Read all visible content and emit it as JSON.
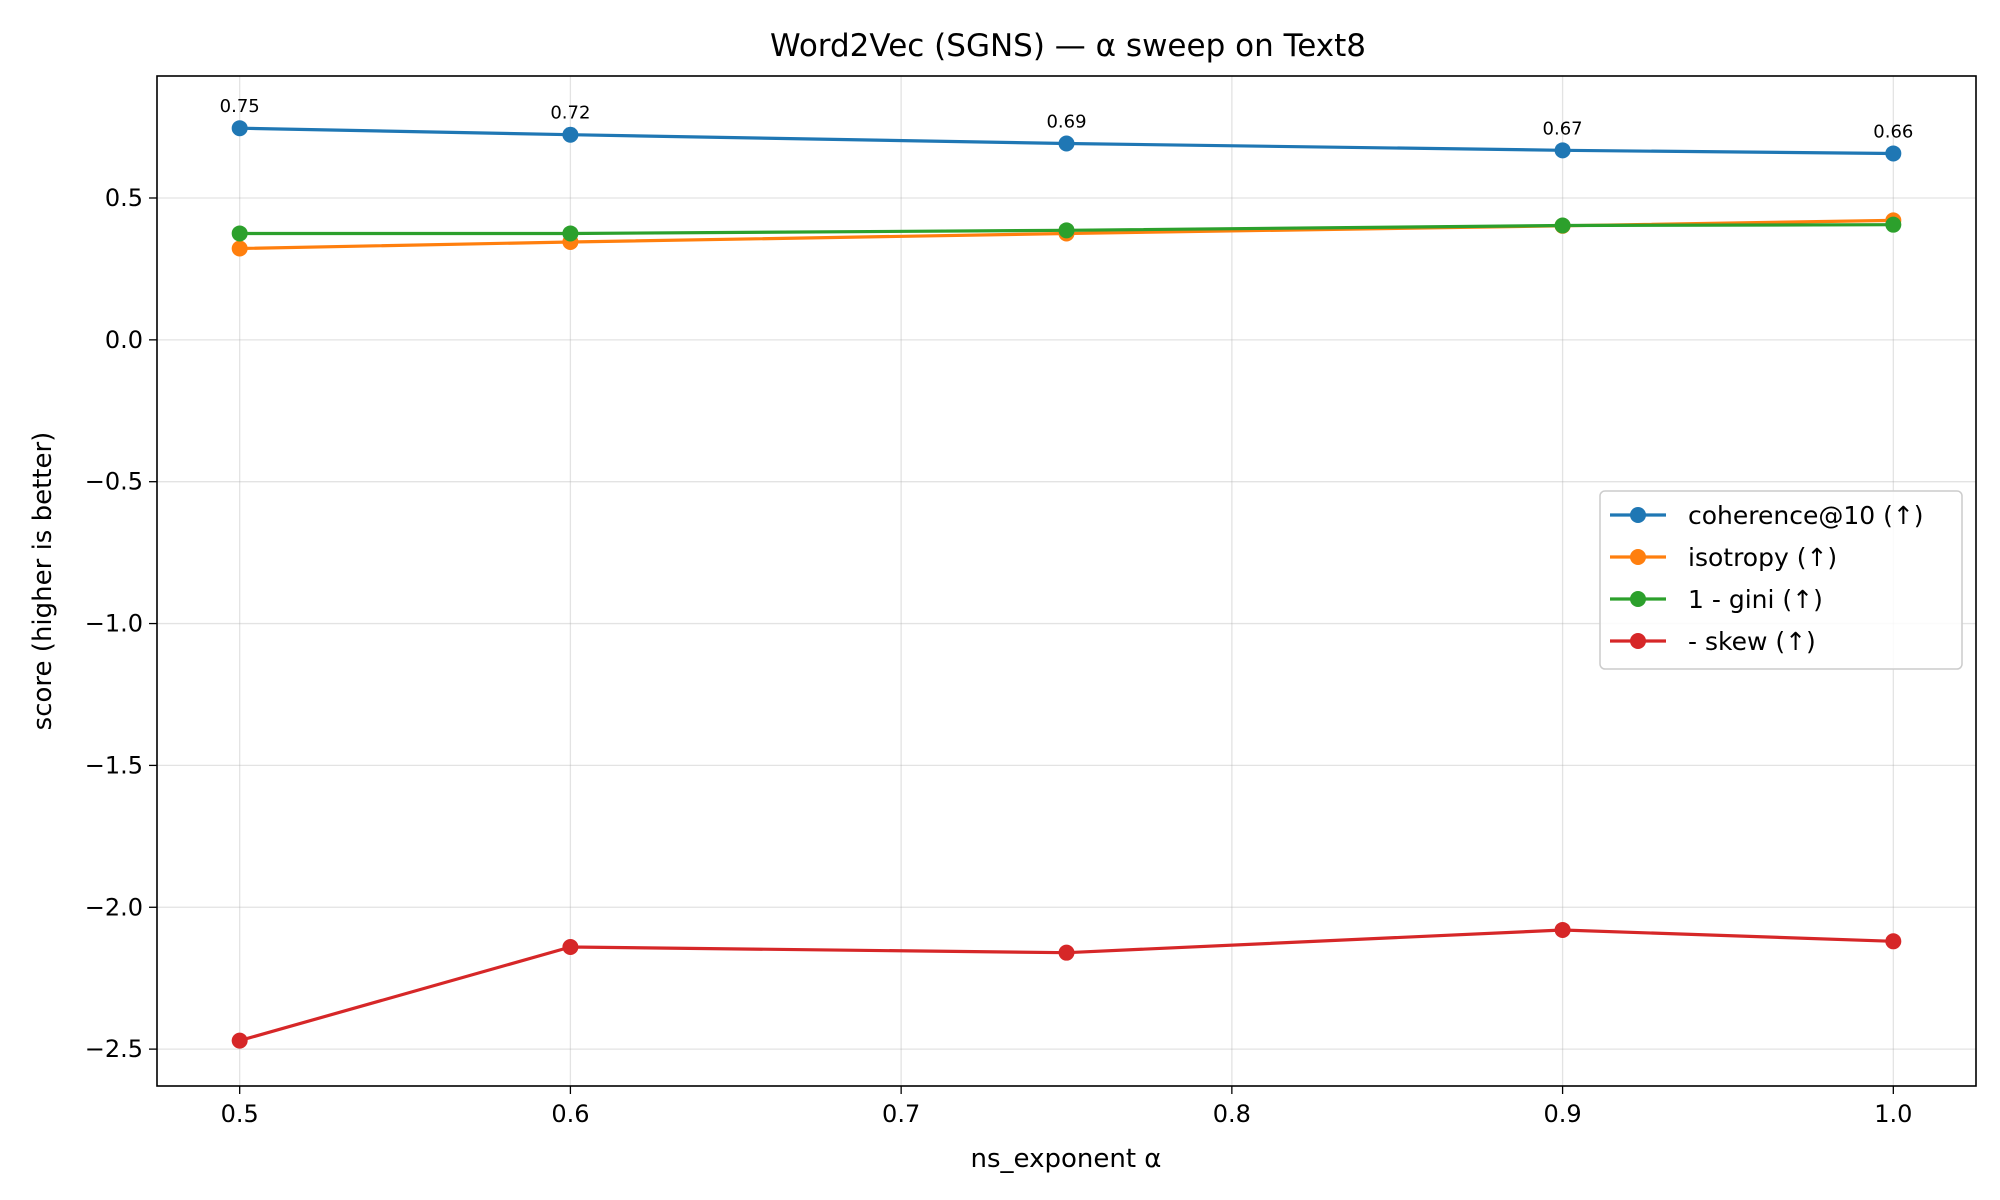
{
  "chart_data": {
    "type": "line",
    "title": "Word2Vec (SGNS) — α sweep on Text8",
    "xlabel": "ns_exponent α",
    "ylabel": "score (higher is better)",
    "xlim": [
      0.475,
      1.025
    ],
    "ylim": [
      -2.63,
      0.93
    ],
    "xticks": [
      0.5,
      0.6,
      0.7,
      0.8,
      0.9,
      1.0
    ],
    "xtick_labels": [
      "0.5",
      "0.6",
      "0.7",
      "0.8",
      "0.9",
      "1.0"
    ],
    "yticks": [
      0.5,
      0.0,
      -0.5,
      -1.0,
      -1.5,
      -2.0,
      -2.5
    ],
    "ytick_labels": [
      "0.5",
      "0.0",
      "−0.5",
      "−1.0",
      "−1.5",
      "−2.0",
      "−2.5"
    ],
    "grid": true,
    "legend_position": "center-right",
    "x": [
      0.5,
      0.6,
      0.75,
      0.9,
      1.0
    ],
    "series": [
      {
        "name": "coherence@10 (↑)",
        "color": "#1f77b4",
        "values": [
          0.746,
          0.723,
          0.692,
          0.668,
          0.657
        ],
        "labels": [
          "0.75",
          "0.72",
          "0.69",
          "0.67",
          "0.66"
        ]
      },
      {
        "name": "isotropy (↑)",
        "color": "#ff7f0e",
        "values": [
          0.322,
          0.345,
          0.375,
          0.402,
          0.421
        ]
      },
      {
        "name": "1 - gini (↑)",
        "color": "#2ca02c",
        "values": [
          0.375,
          0.375,
          0.386,
          0.403,
          0.406
        ]
      },
      {
        "name": "- skew (↑)",
        "color": "#d62728",
        "values": [
          -2.47,
          -2.14,
          -2.16,
          -2.08,
          -2.12
        ]
      }
    ]
  }
}
